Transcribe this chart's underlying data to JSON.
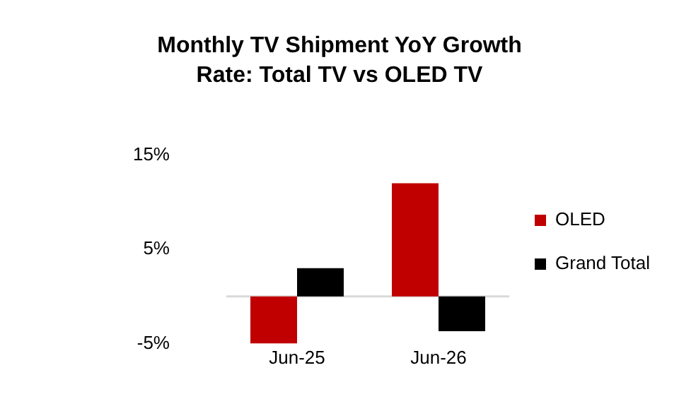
{
  "chart_data": {
    "type": "bar",
    "title": "Monthly TV Shipment YoY Growth Rate: Total TV vs OLED TV",
    "categories": [
      "Jun-25",
      "Jun-26"
    ],
    "series": [
      {
        "name": "OLED",
        "color": "#c00000",
        "values": [
          -5,
          12
        ]
      },
      {
        "name": "Grand Total",
        "color": "#000000",
        "values": [
          3,
          -3.7
        ]
      }
    ],
    "ylim": [
      -5,
      15
    ],
    "yticks": [
      {
        "value": 15,
        "label": "15%"
      },
      {
        "value": 5,
        "label": "5%"
      },
      {
        "value": -5,
        "label": "-5%"
      }
    ],
    "ref_lines": [
      {
        "axis": "y",
        "value": 0,
        "color": "#d9d9d9"
      }
    ],
    "grid": false,
    "legend": "right"
  }
}
